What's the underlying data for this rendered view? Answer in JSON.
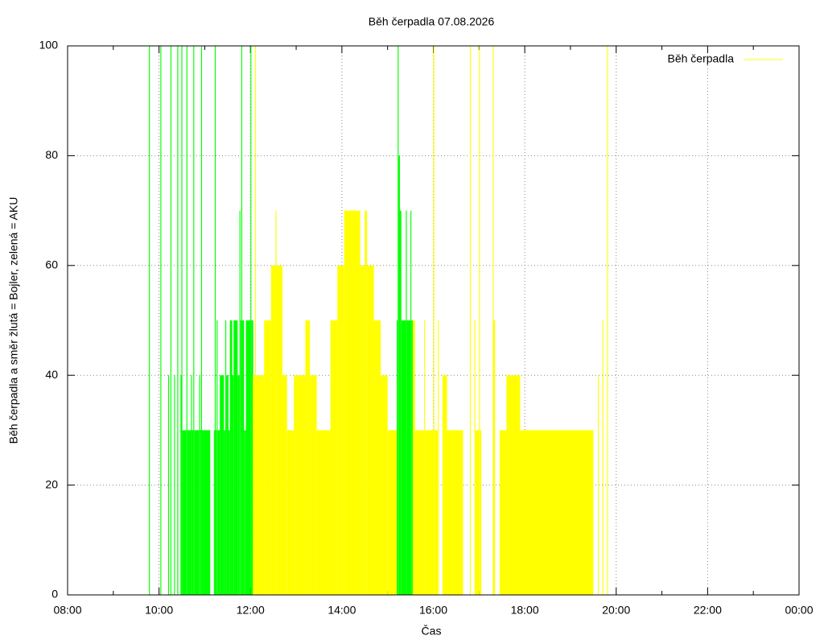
{
  "chart_data": {
    "type": "step",
    "title": "Běh čerpadla 07.08.2026",
    "x_label": "Čas",
    "y_label": "Běh čerpadla a směr žlutá = Bojler, zelená = AKU",
    "xlim": [
      8,
      24
    ],
    "ylim": [
      0,
      100
    ],
    "xticks": [
      {
        "value": 8,
        "label": "08:00"
      },
      {
        "value": 10,
        "label": "10:00"
      },
      {
        "value": 12,
        "label": "12:00"
      },
      {
        "value": 14,
        "label": "14:00"
      },
      {
        "value": 16,
        "label": "16:00"
      },
      {
        "value": 18,
        "label": "18:00"
      },
      {
        "value": 20,
        "label": "20:00"
      },
      {
        "value": 22,
        "label": "22:00"
      },
      {
        "value": 24,
        "label": "00:00"
      }
    ],
    "yticks": [
      0,
      20,
      40,
      60,
      80,
      100
    ],
    "grid": true,
    "legend": "top-right",
    "series": [
      {
        "color": "#00ff00",
        "x": [
          9.78,
          9.8,
          10.03,
          10.05,
          10.2,
          10.22,
          10.25,
          10.27,
          10.33,
          10.35,
          10.4,
          10.42,
          10.47,
          10.49,
          10.51,
          10.6,
          10.62,
          10.7,
          10.72,
          10.75,
          10.77,
          10.88,
          10.9,
          10.92,
          10.94,
          11.12,
          11.2,
          11.22,
          11.24,
          11.26,
          11.28,
          11.33,
          11.42,
          11.45,
          11.47,
          11.52,
          11.55,
          11.6,
          11.63,
          11.72,
          11.76,
          11.78,
          11.8,
          11.82,
          11.86,
          11.9,
          12.0,
          12.02,
          12.06,
          15.2,
          15.22,
          15.24,
          15.27,
          15.3,
          15.4,
          15.42,
          15.5,
          15.52,
          15.55
        ],
        "values": [
          100,
          0,
          100,
          0,
          40,
          0,
          100,
          0,
          40,
          0,
          100,
          0,
          40,
          100,
          30,
          100,
          30,
          40,
          30,
          100,
          30,
          40,
          30,
          100,
          30,
          0,
          30,
          100,
          30,
          50,
          30,
          40,
          30,
          50,
          40,
          30,
          50,
          40,
          50,
          40,
          70,
          50,
          100,
          50,
          30,
          50,
          100,
          50,
          0,
          50,
          100,
          80,
          70,
          50,
          70,
          50,
          70,
          50,
          0
        ]
      },
      {
        "name": "Běh čerpadla",
        "color": "#ffff00",
        "x": [
          12.05,
          12.1,
          12.12,
          12.3,
          12.45,
          12.55,
          12.57,
          12.7,
          12.8,
          12.95,
          13.2,
          13.3,
          13.45,
          13.75,
          13.9,
          14.05,
          14.4,
          14.5,
          14.55,
          14.7,
          14.85,
          15.0,
          15.2,
          15.55,
          15.6,
          15.8,
          15.82,
          16.0,
          16.02,
          16.1,
          16.12,
          16.2,
          16.3,
          16.65,
          16.8,
          16.82,
          16.9,
          16.92,
          17.0,
          17.02,
          17.05,
          17.3,
          17.32,
          17.35,
          17.45,
          17.6,
          17.9,
          19.5,
          19.6,
          19.62,
          19.7,
          19.72,
          19.8,
          19.82
        ],
        "values": [
          40,
          100,
          40,
          50,
          60,
          70,
          60,
          40,
          30,
          40,
          50,
          40,
          30,
          50,
          60,
          70,
          60,
          70,
          60,
          50,
          40,
          30,
          0,
          50,
          30,
          50,
          30,
          100,
          30,
          50,
          0,
          40,
          30,
          0,
          100,
          0,
          50,
          30,
          100,
          30,
          0,
          100,
          50,
          0,
          30,
          40,
          30,
          0,
          40,
          0,
          50,
          0,
          100,
          0
        ]
      }
    ]
  }
}
